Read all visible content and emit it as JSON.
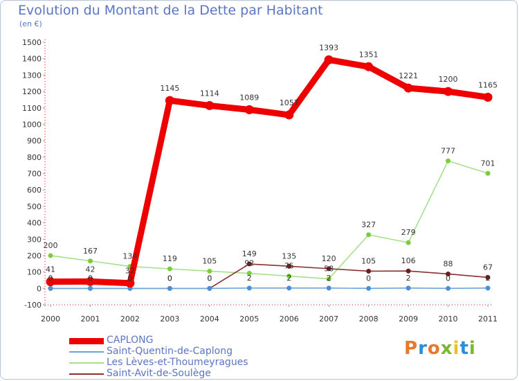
{
  "title": "Evolution du Montant de la Dette par Habitant",
  "subtitle": "(en €)",
  "logo": {
    "text": "Proxiti",
    "colors": [
      "#e8792a",
      "#2a8fd8",
      "#e8792a",
      "#7cb82f",
      "#e8c12a",
      "#2a8fd8",
      "#7cb82f"
    ]
  },
  "chart_data": {
    "type": "line",
    "x": [
      "2000",
      "2001",
      "2002",
      "2003",
      "2004",
      "2005",
      "2006",
      "2007",
      "2008",
      "2009",
      "2010",
      "2011"
    ],
    "ylim": [
      -100,
      1500
    ],
    "yticks": [
      -100,
      0,
      100,
      200,
      300,
      400,
      500,
      600,
      700,
      800,
      900,
      1000,
      1100,
      1200,
      1300,
      1400,
      1500
    ],
    "grid": false,
    "legend_position": "bottom-left",
    "series": [
      {
        "name": "CAPLONG",
        "color": "#ee0000",
        "width": "thick",
        "values": [
          41,
          42,
          32,
          1145,
          1114,
          1089,
          1057,
          1393,
          1351,
          1221,
          1200,
          1165
        ],
        "labels": [
          "41",
          "42",
          "32",
          "1145",
          "1114",
          "1089",
          "1057",
          "1393",
          "1351",
          "1221",
          "1200",
          "1165"
        ]
      },
      {
        "name": "Saint-Quentin-de-Caplong",
        "color": "#6fa3d8",
        "marker": "#4a90d9",
        "width": "thin",
        "values": [
          0,
          0,
          0,
          0,
          0,
          2,
          2,
          2,
          0,
          2,
          0,
          2
        ],
        "labels": [
          "0",
          "0",
          "0",
          "0",
          "0",
          "2",
          "2",
          "2",
          "0",
          "2",
          "0",
          "2"
        ]
      },
      {
        "name": "Les Lèves-et-Thoumeyragues",
        "color": "#a6e08a",
        "marker": "#7ccc3c",
        "width": "thin",
        "values": [
          200,
          167,
          134,
          119,
          105,
          92,
          75,
          58,
          327,
          279,
          777,
          701
        ],
        "labels": [
          "200",
          "167",
          "134",
          "119",
          "105",
          "92",
          "75",
          "58",
          "327",
          "279",
          "777",
          "701"
        ]
      },
      {
        "name": "Saint-Avit-de-Soulège",
        "color": "#8a3030",
        "marker": "#6a1f1f",
        "width": "thin",
        "values": [
          0,
          0,
          0,
          0,
          0,
          149,
          135,
          120,
          105,
          106,
          88,
          67
        ],
        "labels": [
          "0",
          "0",
          "0",
          "0",
          "0",
          "149",
          "135",
          "120",
          "105",
          "106",
          "88",
          "67"
        ]
      }
    ]
  }
}
